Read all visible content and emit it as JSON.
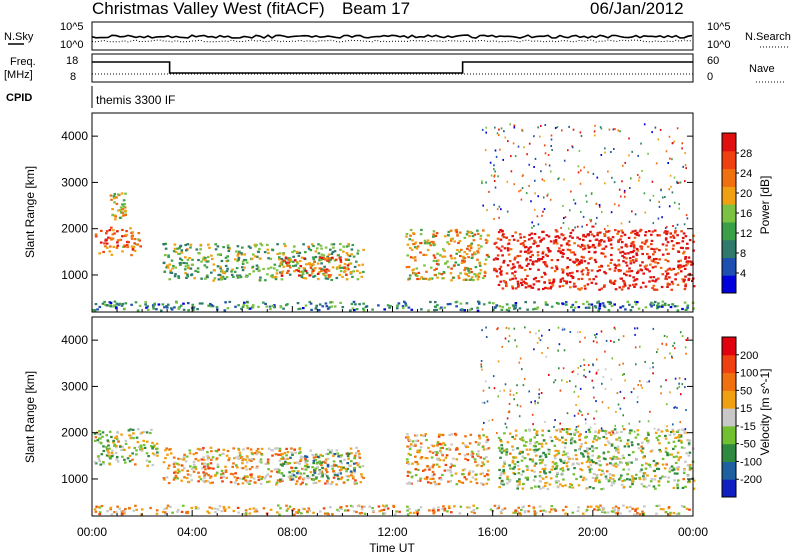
{
  "header": {
    "station": "Christmas Valley West (fitACF)",
    "beam": "Beam 17",
    "date": "06/Jan/2012"
  },
  "top_panels": {
    "nsky_label": "N.Sky",
    "nsearch_label": "N.Search",
    "nsky_ticks": [
      "10^5",
      "10^0"
    ],
    "nsearch_ticks": [
      "10^5",
      "10^0"
    ],
    "freq_label": "Freq.",
    "freq_unit": "[MHz]",
    "freq_ticks": [
      "18",
      "8"
    ],
    "nave_label": "Nave",
    "nave_ticks": [
      "60",
      "0"
    ],
    "cpid_label": "CPID",
    "cpid_value": "themis 3300 IF"
  },
  "x_axis": {
    "label": "Time UT",
    "ticks": [
      "00:00",
      "04:00",
      "08:00",
      "12:00",
      "16:00",
      "20:00",
      "00:00"
    ]
  },
  "chart_data": [
    {
      "type": "heatmap",
      "panel": "power",
      "ylabel": "Slant Range [km]",
      "yticks": [
        "1000",
        "2000",
        "3000",
        "4000"
      ],
      "ylim": [
        200,
        4500
      ],
      "xlim": [
        0,
        24
      ],
      "colorbar_label": "Power [dB]",
      "colorbar_ticks": [
        "28",
        "24",
        "20",
        "16",
        "12",
        "8",
        "4"
      ],
      "colors": [
        "#0000dd",
        "#1f4fb0",
        "#2f7a6a",
        "#3aa048",
        "#7cc242",
        "#f0a010",
        "#f07010",
        "#f04010",
        "#e01010"
      ],
      "regions": [
        {
          "t": [
            0.1,
            1.9
          ],
          "r": [
            1450,
            2050
          ],
          "level": 0.75
        },
        {
          "t": [
            0.7,
            1.3
          ],
          "r": [
            2200,
            2800
          ],
          "level": 0.55
        },
        {
          "t": [
            2.8,
            10.8
          ],
          "r": [
            900,
            1700
          ],
          "level": 0.45
        },
        {
          "t": [
            7.4,
            10.2
          ],
          "r": [
            1000,
            1400
          ],
          "level": 0.8
        },
        {
          "t": [
            12.5,
            15.8
          ],
          "r": [
            900,
            2000
          ],
          "level": 0.6
        },
        {
          "t": [
            16.0,
            24.0
          ],
          "r": [
            700,
            2000
          ],
          "level": 0.95
        },
        {
          "t": [
            0.0,
            24.0
          ],
          "r": [
            250,
            450
          ],
          "level": 0.3
        }
      ]
    },
    {
      "type": "heatmap",
      "panel": "velocity",
      "ylabel": "Slant Range [km]",
      "yticks": [
        "1000",
        "2000",
        "3000",
        "4000"
      ],
      "ylim": [
        200,
        4500
      ],
      "xlim": [
        0,
        24
      ],
      "colorbar_label": "Velocity [m s^-1]",
      "colorbar_ticks": [
        "200",
        "100",
        "50",
        "15",
        "-15",
        "-50",
        "-100",
        "-200"
      ],
      "colors": [
        "#1020c0",
        "#1f60a0",
        "#2f8a40",
        "#70c030",
        "#c8c8c8",
        "#f0a010",
        "#f07010",
        "#f04010",
        "#e00010"
      ],
      "regions": [
        {
          "t": [
            0.0,
            2.6
          ],
          "r": [
            1300,
            2100
          ],
          "level": 0.45
        },
        {
          "t": [
            2.8,
            10.8
          ],
          "r": [
            900,
            1700
          ],
          "level": 0.6
        },
        {
          "t": [
            7.4,
            10.5
          ],
          "r": [
            1000,
            1600
          ],
          "level": 0.35
        },
        {
          "t": [
            12.5,
            15.8
          ],
          "r": [
            900,
            2000
          ],
          "level": 0.6
        },
        {
          "t": [
            16.2,
            24.0
          ],
          "r": [
            800,
            2100
          ],
          "level": 0.45
        },
        {
          "t": [
            0.0,
            24.0
          ],
          "r": [
            250,
            450
          ],
          "level": 0.6
        }
      ]
    }
  ]
}
